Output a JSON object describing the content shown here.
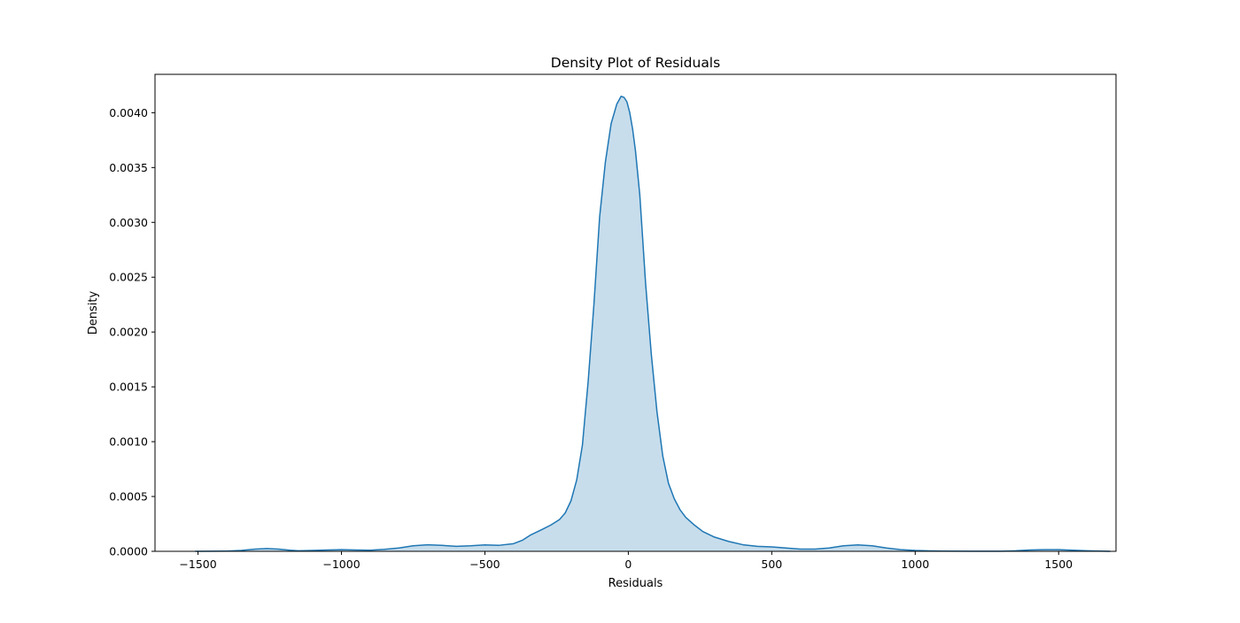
{
  "chart_data": {
    "type": "area",
    "title": "Density Plot of Residuals",
    "xlabel": "Residuals",
    "ylabel": "Density",
    "xlim": [
      -1650,
      1700
    ],
    "ylim": [
      0,
      0.00435
    ],
    "x_ticks": [
      -1500,
      -1000,
      -500,
      0,
      500,
      1000,
      1500
    ],
    "x_tick_labels": [
      "−1500",
      "−1000",
      "−500",
      "0",
      "500",
      "1000",
      "1500"
    ],
    "y_ticks": [
      0,
      0.0005,
      0.001,
      0.0015,
      0.002,
      0.0025,
      0.003,
      0.0035,
      0.004
    ],
    "y_tick_labels": [
      "0.0000",
      "0.0005",
      "0.0010",
      "0.0015",
      "0.0020",
      "0.0025",
      "0.0030",
      "0.0035",
      "0.0040"
    ],
    "grid": false,
    "series": [
      {
        "color": "#1f77b4",
        "fill_color": "#1f77b4",
        "fill_opacity": 0.25,
        "x": [
          -1510,
          -1400,
          -1350,
          -1300,
          -1260,
          -1220,
          -1180,
          -1150,
          -1100,
          -1050,
          -1000,
          -950,
          -900,
          -850,
          -800,
          -750,
          -700,
          -650,
          -600,
          -550,
          -500,
          -450,
          -400,
          -370,
          -340,
          -300,
          -270,
          -240,
          -220,
          -200,
          -180,
          -160,
          -140,
          -120,
          -100,
          -80,
          -60,
          -40,
          -25,
          -15,
          -5,
          5,
          15,
          25,
          40,
          60,
          80,
          100,
          120,
          140,
          160,
          180,
          200,
          230,
          260,
          300,
          350,
          400,
          450,
          500,
          550,
          600,
          650,
          700,
          750,
          800,
          850,
          900,
          950,
          1000,
          1050,
          1100,
          1200,
          1300,
          1350,
          1400,
          1450,
          1500,
          1550,
          1600,
          1680
        ],
        "y": [
          0.0,
          2e-06,
          8e-06,
          2e-05,
          2.5e-05,
          2e-05,
          1e-05,
          5e-06,
          8e-06,
          1.2e-05,
          1.5e-05,
          1.2e-05,
          1e-05,
          1.8e-05,
          3e-05,
          5e-05,
          6e-05,
          5.5e-05,
          4.5e-05,
          5e-05,
          5.8e-05,
          5.5e-05,
          7e-05,
          0.0001,
          0.00015,
          0.0002,
          0.00024,
          0.00029,
          0.00035,
          0.00046,
          0.00065,
          0.00097,
          0.00155,
          0.00225,
          0.00305,
          0.00355,
          0.0039,
          0.00408,
          0.00415,
          0.00414,
          0.0041,
          0.004,
          0.00385,
          0.00365,
          0.00325,
          0.00245,
          0.0018,
          0.00127,
          0.00087,
          0.00062,
          0.00048,
          0.00038,
          0.00031,
          0.00024,
          0.00018,
          0.00013,
          9e-05,
          6e-05,
          4.5e-05,
          4e-05,
          3e-05,
          2e-05,
          2e-05,
          3e-05,
          5e-05,
          5.8e-05,
          5e-05,
          3e-05,
          1.5e-05,
          8e-06,
          4e-06,
          2e-06,
          1e-06,
          1e-06,
          5e-06,
          1.2e-05,
          1.5e-05,
          1.5e-05,
          1e-05,
          5e-06,
          0.0
        ]
      }
    ]
  }
}
